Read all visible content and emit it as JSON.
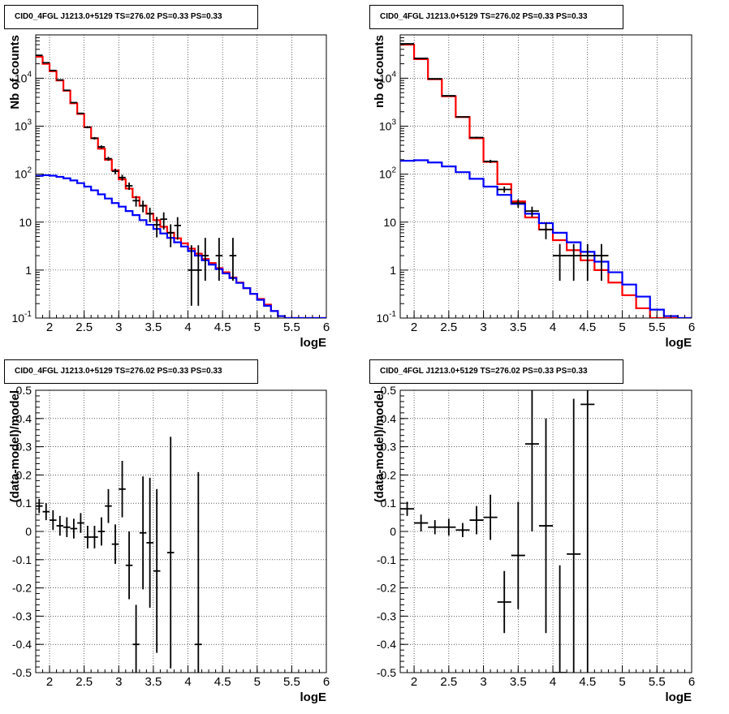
{
  "chart_data": [
    {
      "type": "line",
      "title": "CID0_4FGL J1213.0+5129 TS=276.02 PS=0.33 PS=0.33",
      "xlabel": "logE",
      "ylabel": "Nb of counts",
      "xlim": [
        1.8,
        6.0
      ],
      "ylim": [
        0.1,
        80000
      ],
      "log_y": true,
      "grid": true,
      "x_ticks": [
        2,
        2.5,
        3,
        3.5,
        4,
        4.5,
        5,
        5.5,
        6
      ],
      "x_tick_labels": [
        "2",
        "2.5",
        "3",
        "3.5",
        "4",
        "4.5",
        "5",
        "5.5",
        "6"
      ],
      "y_ticks": [
        0.1,
        1,
        10,
        100,
        1000,
        10000
      ],
      "y_tick_labels": [
        "10-1",
        "1",
        "10",
        "10^2",
        "10^3",
        "10^4"
      ],
      "bin_width": 0.1,
      "series": [
        {
          "color": "#ff0000",
          "style": "step",
          "x": [
            1.85,
            1.95,
            2.05,
            2.15,
            2.25,
            2.35,
            2.45,
            2.55,
            2.65,
            2.75,
            2.85,
            2.95,
            3.05,
            3.15,
            3.25,
            3.35,
            3.45,
            3.55,
            3.65,
            3.75,
            3.85,
            3.95,
            4.05,
            4.15,
            4.25,
            4.35,
            4.45,
            4.55,
            4.65,
            4.75,
            4.85,
            4.95,
            5.05,
            5.15,
            5.25,
            5.35,
            5.45,
            5.55,
            5.65,
            5.75,
            5.85,
            5.95
          ],
          "y": [
            28000,
            20000,
            14000,
            9000,
            5500,
            3000,
            1800,
            950,
            560,
            340,
            200,
            120,
            78,
            50,
            33,
            22,
            15,
            11,
            8,
            6,
            4.6,
            3.6,
            2.8,
            2.2,
            1.7,
            1.4,
            1.1,
            0.9,
            0.7,
            0.55,
            0.42,
            0.32,
            0.25,
            0.19,
            0.14,
            0.11,
            0.1,
            0.1,
            0.1,
            0.1,
            0.1,
            0.1
          ]
        },
        {
          "color": "#0000ff",
          "style": "step",
          "x": [
            1.85,
            1.95,
            2.05,
            2.15,
            2.25,
            2.35,
            2.45,
            2.55,
            2.65,
            2.75,
            2.85,
            2.95,
            3.05,
            3.15,
            3.25,
            3.35,
            3.45,
            3.55,
            3.65,
            3.75,
            3.85,
            3.95,
            4.05,
            4.15,
            4.25,
            4.35,
            4.45,
            4.55,
            4.65,
            4.75,
            4.85,
            4.95,
            5.05,
            5.15,
            5.25,
            5.35,
            5.45,
            5.55,
            5.65,
            5.75,
            5.85,
            5.95
          ],
          "y": [
            92,
            95,
            93,
            88,
            82,
            74,
            65,
            55,
            46,
            38,
            31,
            25,
            21,
            17,
            14,
            11,
            8.8,
            7.2,
            5.8,
            4.7,
            3.8,
            3.1,
            2.5,
            2.0,
            1.6,
            1.3,
            1.05,
            0.85,
            0.68,
            0.54,
            0.42,
            0.32,
            0.24,
            0.18,
            0.14,
            0.11,
            0.1,
            0.1,
            0.1,
            0.1,
            0.1,
            0.1
          ]
        },
        {
          "color": "#000000",
          "style": "errorbar",
          "x": [
            1.85,
            1.95,
            2.05,
            2.15,
            2.25,
            2.35,
            2.45,
            2.55,
            2.65,
            2.75,
            2.85,
            2.95,
            3.05,
            3.15,
            3.25,
            3.35,
            3.45,
            3.55,
            3.65,
            3.75,
            3.85,
            4.05,
            4.15,
            4.25,
            4.45,
            4.65
          ],
          "y": [
            30000,
            21000,
            14500,
            9200,
            5600,
            3100,
            1850,
            950,
            560,
            370,
            210,
            115,
            85,
            57,
            28,
            22,
            15,
            8.8,
            11.5,
            6,
            8.5,
            1,
            1,
            2,
            2,
            2
          ],
          "err_lo": [
            300,
            220,
            180,
            140,
            110,
            80,
            60,
            45,
            35,
            28,
            20,
            15,
            12,
            10,
            7,
            6,
            5,
            4,
            4.5,
            3,
            4.2,
            0.82,
            0.82,
            1.4,
            1.4,
            1.4
          ],
          "err_hi": [
            300,
            220,
            180,
            140,
            110,
            80,
            60,
            45,
            35,
            28,
            20,
            15,
            12,
            10,
            7,
            6,
            5,
            4,
            4.5,
            3,
            4.2,
            2.3,
            2.3,
            2.7,
            2.7,
            2.7
          ]
        }
      ]
    },
    {
      "type": "line",
      "title": "CID0_4FGL J1213.0+5129 TS=276.02 PS=0.33 PS=0.33",
      "xlabel": "logE",
      "ylabel": "nb of counts",
      "xlim": [
        1.8,
        6.0
      ],
      "ylim": [
        0.1,
        80000
      ],
      "log_y": true,
      "grid": true,
      "x_ticks": [
        2,
        2.5,
        3,
        3.5,
        4,
        4.5,
        5,
        5.5,
        6
      ],
      "x_tick_labels": [
        "2",
        "2.5",
        "3",
        "3.5",
        "4",
        "4.5",
        "5",
        "5.5",
        "6"
      ],
      "y_ticks": [
        0.1,
        1,
        10,
        100,
        1000,
        10000
      ],
      "y_tick_labels": [
        "10-1",
        "1",
        "10",
        "10^2",
        "10^3",
        "10^4"
      ],
      "bin_width": 0.2,
      "series": [
        {
          "color": "#ff0000",
          "style": "step",
          "x": [
            1.9,
            2.1,
            2.3,
            2.5,
            2.7,
            2.9,
            3.1,
            3.3,
            3.5,
            3.7,
            3.9,
            4.1,
            4.3,
            4.5,
            4.7,
            4.9,
            5.1,
            5.3,
            5.5,
            5.7,
            5.9
          ],
          "y": [
            50000,
            25000,
            9500,
            4200,
            1550,
            560,
            180,
            62,
            27,
            12.5,
            7,
            4.2,
            2.6,
            1.6,
            1.0,
            0.55,
            0.3,
            0.16,
            0.1,
            0.1,
            0.1
          ],
          "fill": "#ff000014"
        },
        {
          "color": "#0000ff",
          "style": "step",
          "x": [
            1.9,
            2.1,
            2.3,
            2.5,
            2.7,
            2.9,
            3.1,
            3.3,
            3.5,
            3.7,
            3.9,
            4.1,
            4.3,
            4.5,
            4.7,
            4.9,
            5.1,
            5.3,
            5.5,
            5.7,
            5.9
          ],
          "y": [
            190,
            195,
            175,
            145,
            110,
            80,
            55,
            37,
            24,
            15,
            9.5,
            6,
            3.8,
            2.4,
            1.5,
            0.9,
            0.5,
            0.28,
            0.15,
            0.11,
            0.1
          ]
        },
        {
          "color": "#000000",
          "style": "errorbar",
          "x": [
            1.9,
            2.1,
            2.3,
            2.5,
            2.7,
            2.9,
            3.1,
            3.3,
            3.5,
            3.7,
            3.9,
            4.1,
            4.3,
            4.5,
            4.7
          ],
          "y": [
            52000,
            26000,
            9700,
            4300,
            1560,
            580,
            185,
            48,
            25,
            17,
            7,
            2,
            2,
            2,
            2
          ],
          "err_lo": [
            230,
            160,
            100,
            65,
            40,
            24,
            14,
            7,
            5,
            4,
            2.6,
            1.4,
            1.4,
            1.4,
            1.4
          ],
          "err_hi": [
            230,
            160,
            100,
            65,
            40,
            24,
            14,
            7,
            5,
            4,
            2.6,
            1.5,
            1.5,
            1.5,
            1.5
          ]
        }
      ]
    },
    {
      "type": "scatter",
      "title": "CID0_4FGL J1213.0+5129 TS=276.02 PS=0.33 PS=0.33",
      "xlabel": "logE",
      "ylabel": "(data-model)/model",
      "xlim": [
        1.8,
        6.0
      ],
      "ylim": [
        -0.5,
        0.5
      ],
      "grid": true,
      "x_ticks": [
        2,
        2.5,
        3,
        3.5,
        4,
        4.5,
        5,
        5.5,
        6
      ],
      "x_tick_labels": [
        "2",
        "2.5",
        "3",
        "3.5",
        "4",
        "4.5",
        "5",
        "5.5",
        "6"
      ],
      "y_ticks": [
        -0.5,
        -0.4,
        -0.3,
        -0.2,
        -0.1,
        0,
        0.1,
        0.2,
        0.3,
        0.4,
        0.5
      ],
      "y_tick_labels": [
        "-0.5",
        "-0.4",
        "-0.3",
        "-0.2",
        "-0.1",
        "0",
        "0.1",
        "0.2",
        "0.3",
        "0.4",
        "0.5"
      ],
      "bin_width": 0.1,
      "series": [
        {
          "color": "#000000",
          "style": "errorbar",
          "x": [
            1.85,
            1.95,
            2.05,
            2.15,
            2.25,
            2.35,
            2.45,
            2.55,
            2.65,
            2.75,
            2.85,
            2.95,
            3.05,
            3.15,
            3.25,
            3.35,
            3.45,
            3.55,
            3.75,
            4.15
          ],
          "y": [
            0.09,
            0.07,
            0.04,
            0.02,
            0.015,
            0.01,
            0.03,
            -0.02,
            -0.02,
            0.0,
            0.09,
            -0.045,
            0.15,
            -0.12,
            -0.4,
            -0.005,
            -0.04,
            -0.14,
            -0.075,
            -0.4
          ],
          "err": [
            0.025,
            0.03,
            0.035,
            0.035,
            0.035,
            0.035,
            0.035,
            0.04,
            0.04,
            0.05,
            0.06,
            0.07,
            0.1,
            0.12,
            0.14,
            0.2,
            0.23,
            0.29,
            0.41,
            0.61
          ]
        }
      ]
    },
    {
      "type": "scatter",
      "title": "CID0_4FGL J1213.0+5129 TS=276.02 PS=0.33 PS=0.33",
      "xlabel": "logE",
      "ylabel": "(data-model)/model",
      "xlim": [
        1.8,
        6.0
      ],
      "ylim": [
        -0.5,
        0.5
      ],
      "grid": true,
      "x_ticks": [
        2,
        2.5,
        3,
        3.5,
        4,
        4.5,
        5,
        5.5,
        6
      ],
      "x_tick_labels": [
        "2",
        "2.5",
        "3",
        "3.5",
        "4",
        "4.5",
        "5",
        "5.5",
        "6"
      ],
      "y_ticks": [
        -0.5,
        -0.4,
        -0.3,
        -0.2,
        -0.1,
        0,
        0.1,
        0.2,
        0.3,
        0.4,
        0.5
      ],
      "y_tick_labels": [
        "-0.5",
        "-0.4",
        "-0.3",
        "-0.2",
        "-0.1",
        "0",
        "0.1",
        "0.2",
        "0.3",
        "0.4",
        "0.5"
      ],
      "bin_width": 0.2,
      "series": [
        {
          "color": "#000000",
          "style": "errorbar",
          "x": [
            1.9,
            2.1,
            2.3,
            2.5,
            2.7,
            2.9,
            3.1,
            3.3,
            3.5,
            3.7,
            3.9,
            4.1,
            4.3,
            4.5
          ],
          "y": [
            0.08,
            0.03,
            0.015,
            0.015,
            0.005,
            0.04,
            0.05,
            -0.25,
            -0.085,
            0.31,
            0.02,
            -0.5,
            -0.08,
            0.45
          ],
          "err": [
            0.025,
            0.03,
            0.025,
            0.03,
            0.025,
            0.05,
            0.08,
            0.11,
            0.19,
            0.31,
            0.38,
            0.38,
            0.55,
            0.95
          ]
        }
      ]
    }
  ]
}
